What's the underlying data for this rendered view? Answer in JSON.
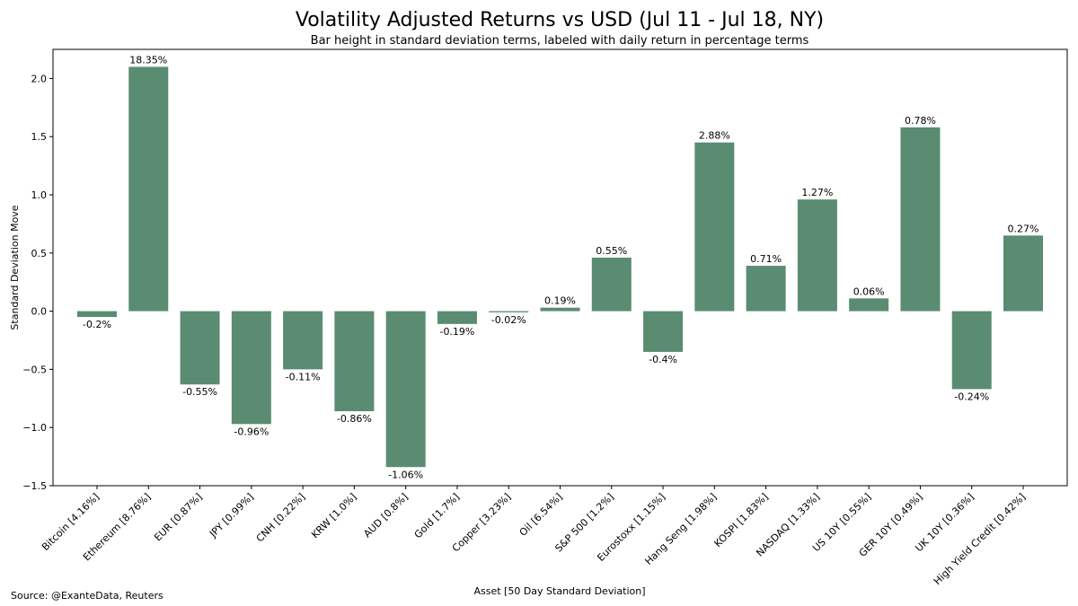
{
  "chart_data": {
    "type": "bar",
    "title": "Volatility Adjusted Returns vs USD (Jul 11 - Jul 18, NY)",
    "subtitle": "Bar height in standard deviation terms, labeled with daily return in percentage terms",
    "xlabel": "Asset [50 Day Standard Deviation]",
    "ylabel": "Standard Deviation Move",
    "ylim": [
      -1.5,
      2.25
    ],
    "yticks": [
      -1.5,
      -1.0,
      -0.5,
      0.0,
      0.5,
      1.0,
      1.5,
      2.0
    ],
    "ytick_labels": [
      "−1.5",
      "−1.0",
      "−0.5",
      "0.0",
      "0.5",
      "1.0",
      "1.5",
      "2.0"
    ],
    "grid": false,
    "bar_color": "#5a8c72",
    "categories": [
      "Bitcoin [4.16%]",
      "Ethereum [8.76%]",
      "EUR [0.87%]",
      "JPY [0.99%]",
      "CNH [0.22%]",
      "KRW [1.0%]",
      "AUD [0.8%]",
      "Gold [1.7%]",
      "Copper [3.23%]",
      "Oil [6.54%]",
      "S&P 500 [1.2%]",
      "Eurostoxx [1.15%]",
      "Hang Seng [1.98%]",
      "KOSPI [1.83%]",
      "NASDAQ [1.33%]",
      "US 10Y [0.55%]",
      "GER 10Y [0.49%]",
      "UK 10Y [0.36%]",
      "High Yield Credit [0.42%]"
    ],
    "values": [
      -0.05,
      2.1,
      -0.63,
      -0.97,
      -0.5,
      -0.86,
      -1.34,
      -0.11,
      -0.01,
      0.03,
      0.46,
      -0.35,
      1.45,
      0.39,
      0.96,
      0.11,
      1.58,
      -0.67,
      0.65
    ],
    "data_labels": [
      "-0.2%",
      "18.35%",
      "-0.55%",
      "-0.96%",
      "-0.11%",
      "-0.86%",
      "-1.06%",
      "-0.19%",
      "-0.02%",
      "0.19%",
      "0.55%",
      "-0.4%",
      "2.88%",
      "0.71%",
      "1.27%",
      "0.06%",
      "0.78%",
      "-0.24%",
      "0.27%"
    ]
  },
  "source": "Source: @ExanteData, Reuters"
}
